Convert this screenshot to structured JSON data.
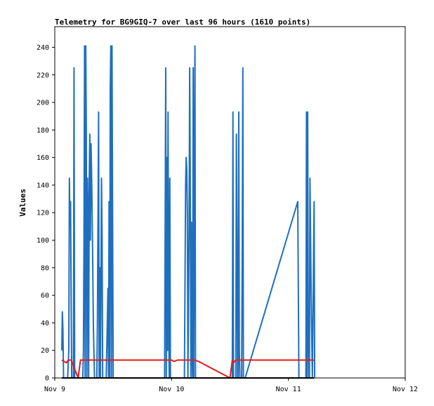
{
  "chart_data": {
    "type": "line",
    "title": "Telemetry for BG9GIQ-7 over last 96 hours (1610 points)",
    "xlabel": "",
    "ylabel": "Values",
    "x_unit": "days since Nov 9",
    "x_ticks": [
      {
        "x": 0,
        "label": "Nov 9"
      },
      {
        "x": 1,
        "label": "Nov 10"
      },
      {
        "x": 2,
        "label": "Nov 11"
      },
      {
        "x": 3,
        "label": "Nov 12"
      }
    ],
    "xlim": [
      0,
      3
    ],
    "ylim": [
      0,
      255
    ],
    "y_ticks": [
      0,
      20,
      40,
      60,
      80,
      100,
      120,
      140,
      160,
      180,
      200,
      220,
      240
    ],
    "grid": false,
    "series": [
      {
        "color": "#1f6fbf",
        "points": [
          [
            0.06,
            20
          ],
          [
            0.065,
            48
          ],
          [
            0.07,
            35
          ],
          [
            0.075,
            0
          ],
          [
            0.09,
            0
          ],
          [
            0.11,
            0
          ],
          [
            0.12,
            20
          ],
          [
            0.125,
            145
          ],
          [
            0.13,
            110
          ],
          [
            0.135,
            128
          ],
          [
            0.14,
            60
          ],
          [
            0.145,
            0
          ],
          [
            0.16,
            0
          ],
          [
            0.165,
            225
          ],
          [
            0.17,
            0
          ],
          [
            0.24,
            0
          ],
          [
            0.245,
            20
          ],
          [
            0.25,
            100
          ],
          [
            0.255,
            241
          ],
          [
            0.26,
            0
          ],
          [
            0.265,
            241
          ],
          [
            0.27,
            180
          ],
          [
            0.275,
            0
          ],
          [
            0.28,
            145
          ],
          [
            0.285,
            120
          ],
          [
            0.29,
            0
          ],
          [
            0.295,
            145
          ],
          [
            0.3,
            177
          ],
          [
            0.305,
            100
          ],
          [
            0.31,
            170
          ],
          [
            0.315,
            150
          ],
          [
            0.32,
            120
          ],
          [
            0.325,
            80
          ],
          [
            0.33,
            40
          ],
          [
            0.335,
            20
          ],
          [
            0.34,
            0
          ],
          [
            0.36,
            0
          ],
          [
            0.365,
            40
          ],
          [
            0.37,
            110
          ],
          [
            0.375,
            193
          ],
          [
            0.38,
            0
          ],
          [
            0.385,
            80
          ],
          [
            0.39,
            0
          ],
          [
            0.395,
            60
          ],
          [
            0.4,
            145
          ],
          [
            0.405,
            100
          ],
          [
            0.41,
            0
          ],
          [
            0.44,
            0
          ],
          [
            0.45,
            40
          ],
          [
            0.455,
            65
          ],
          [
            0.46,
            0
          ],
          [
            0.465,
            128
          ],
          [
            0.47,
            0
          ],
          [
            0.475,
            210
          ],
          [
            0.48,
            241
          ],
          [
            0.485,
            0
          ],
          [
            0.49,
            241
          ],
          [
            0.495,
            120
          ],
          [
            0.5,
            0
          ],
          [
            0.94,
            0
          ],
          [
            0.95,
            225
          ],
          [
            0.955,
            0
          ],
          [
            0.96,
            160
          ],
          [
            0.965,
            20
          ],
          [
            0.97,
            193
          ],
          [
            0.975,
            40
          ],
          [
            0.98,
            0
          ],
          [
            0.985,
            145
          ],
          [
            0.99,
            0
          ],
          [
            1.11,
            0
          ],
          [
            1.12,
            140
          ],
          [
            1.125,
            160
          ],
          [
            1.13,
            150
          ],
          [
            1.135,
            120
          ],
          [
            1.14,
            0
          ],
          [
            1.145,
            60
          ],
          [
            1.15,
            113
          ],
          [
            1.155,
            225
          ],
          [
            1.16,
            145
          ],
          [
            1.165,
            0
          ],
          [
            1.17,
            113
          ],
          [
            1.175,
            20
          ],
          [
            1.18,
            0
          ],
          [
            1.185,
            225
          ],
          [
            1.19,
            0
          ],
          [
            1.195,
            145
          ],
          [
            1.2,
            241
          ],
          [
            1.205,
            0
          ],
          [
            1.21,
            0
          ],
          [
            1.52,
            0
          ],
          [
            1.525,
            193
          ],
          [
            1.53,
            0
          ],
          [
            1.55,
            0
          ],
          [
            1.555,
            177
          ],
          [
            1.56,
            100
          ],
          [
            1.565,
            0
          ],
          [
            1.57,
            0
          ],
          [
            1.575,
            193
          ],
          [
            1.58,
            20
          ],
          [
            1.585,
            0
          ],
          [
            1.6,
            0
          ],
          [
            1.605,
            100
          ],
          [
            1.61,
            225
          ],
          [
            1.615,
            0
          ],
          [
            1.63,
            0
          ],
          [
            2.08,
            128
          ],
          [
            2.085,
            65
          ],
          [
            2.09,
            0
          ],
          [
            2.15,
            0
          ],
          [
            2.155,
            193
          ],
          [
            2.16,
            0
          ],
          [
            2.165,
            193
          ],
          [
            2.17,
            40
          ],
          [
            2.175,
            0
          ],
          [
            2.18,
            0
          ],
          [
            2.185,
            145
          ],
          [
            2.19,
            100
          ],
          [
            2.195,
            60
          ],
          [
            2.2,
            30
          ],
          [
            2.205,
            0
          ],
          [
            2.21,
            40
          ],
          [
            2.215,
            80
          ],
          [
            2.22,
            128
          ],
          [
            2.225,
            0
          ]
        ]
      },
      {
        "color": "#e31a1c",
        "points": [
          [
            0.06,
            13
          ],
          [
            0.1,
            11
          ],
          [
            0.115,
            13
          ],
          [
            0.12,
            13
          ],
          [
            0.14,
            13
          ],
          [
            0.2,
            0
          ],
          [
            0.22,
            13
          ],
          [
            1.0,
            13
          ],
          [
            1.02,
            12
          ],
          [
            1.05,
            13
          ],
          [
            1.2,
            13
          ],
          [
            1.23,
            12
          ],
          [
            1.5,
            0
          ],
          [
            1.52,
            13
          ],
          [
            1.53,
            11
          ],
          [
            1.55,
            13
          ],
          [
            2.2,
            13
          ],
          [
            2.22,
            13
          ]
        ]
      },
      {
        "color": "#000000",
        "points": [
          [
            0.06,
            0
          ],
          [
            2.22,
            0
          ]
        ]
      }
    ]
  }
}
